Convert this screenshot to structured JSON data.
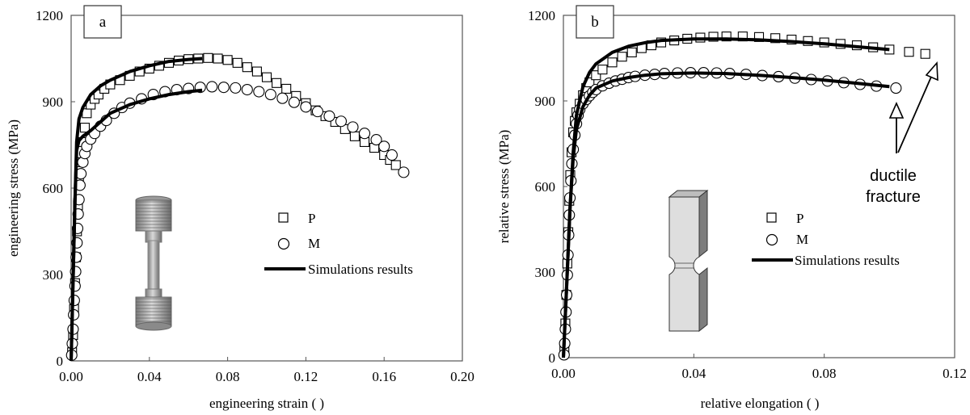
{
  "chart_data": [
    {
      "panel_label": "a",
      "type": "scatter",
      "xlabel": "engineering strain ( )",
      "ylabel": "engineering stress (MPa)",
      "xlim": [
        0,
        0.2
      ],
      "ylim": [
        0,
        1200
      ],
      "xticks": [
        "0.00",
        "0.04",
        "0.08",
        "0.12",
        "0.16",
        "0.20"
      ],
      "yticks": [
        "0",
        "300",
        "600",
        "900",
        "1200"
      ],
      "grid": false,
      "legend_position": "right",
      "legend": [
        {
          "label": "P",
          "marker": "square"
        },
        {
          "label": "M",
          "marker": "circle"
        },
        {
          "label": "Simulations results",
          "marker": "line"
        }
      ],
      "specimen_icon": "cylindrical-threaded-specimen",
      "series": [
        {
          "name": "P",
          "marker": "square",
          "points": [
            [
              0.0005,
              30
            ],
            [
              0.001,
              90
            ],
            [
              0.0015,
              180
            ],
            [
              0.002,
              270
            ],
            [
              0.0025,
              360
            ],
            [
              0.003,
              450
            ],
            [
              0.0035,
              540
            ],
            [
              0.004,
              620
            ],
            [
              0.005,
              690
            ],
            [
              0.006,
              760
            ],
            [
              0.007,
              810
            ],
            [
              0.008,
              860
            ],
            [
              0.01,
              890
            ],
            [
              0.012,
              910
            ],
            [
              0.014,
              925
            ],
            [
              0.017,
              945
            ],
            [
              0.02,
              960
            ],
            [
              0.025,
              975
            ],
            [
              0.03,
              990
            ],
            [
              0.035,
              1005
            ],
            [
              0.04,
              1015
            ],
            [
              0.045,
              1025
            ],
            [
              0.05,
              1035
            ],
            [
              0.055,
              1043
            ],
            [
              0.06,
              1048
            ],
            [
              0.065,
              1050
            ],
            [
              0.07,
              1052
            ],
            [
              0.075,
              1050
            ],
            [
              0.08,
              1045
            ],
            [
              0.085,
              1035
            ],
            [
              0.09,
              1020
            ],
            [
              0.095,
              1005
            ],
            [
              0.1,
              985
            ],
            [
              0.105,
              965
            ],
            [
              0.11,
              945
            ],
            [
              0.115,
              920
            ],
            [
              0.12,
              895
            ],
            [
              0.125,
              870
            ],
            [
              0.13,
              850
            ],
            [
              0.135,
              830
            ],
            [
              0.14,
              805
            ],
            [
              0.145,
              780
            ],
            [
              0.15,
              760
            ],
            [
              0.155,
              740
            ],
            [
              0.16,
              715
            ],
            [
              0.163,
              698
            ],
            [
              0.166,
              680
            ]
          ]
        },
        {
          "name": "M",
          "marker": "circle",
          "points": [
            [
              0.0003,
              20
            ],
            [
              0.0006,
              60
            ],
            [
              0.001,
              110
            ],
            [
              0.0013,
              160
            ],
            [
              0.0016,
              210
            ],
            [
              0.002,
              260
            ],
            [
              0.0023,
              310
            ],
            [
              0.0026,
              360
            ],
            [
              0.003,
              410
            ],
            [
              0.0033,
              460
            ],
            [
              0.0036,
              510
            ],
            [
              0.004,
              560
            ],
            [
              0.0045,
              610
            ],
            [
              0.005,
              650
            ],
            [
              0.006,
              690
            ],
            [
              0.007,
              720
            ],
            [
              0.008,
              745
            ],
            [
              0.01,
              770
            ],
            [
              0.012,
              790
            ],
            [
              0.015,
              815
            ],
            [
              0.018,
              835
            ],
            [
              0.022,
              860
            ],
            [
              0.026,
              880
            ],
            [
              0.03,
              895
            ],
            [
              0.036,
              910
            ],
            [
              0.042,
              925
            ],
            [
              0.048,
              935
            ],
            [
              0.054,
              942
            ],
            [
              0.06,
              946
            ],
            [
              0.066,
              950
            ],
            [
              0.072,
              952
            ],
            [
              0.078,
              950
            ],
            [
              0.084,
              948
            ],
            [
              0.09,
              942
            ],
            [
              0.096,
              935
            ],
            [
              0.102,
              925
            ],
            [
              0.108,
              912
            ],
            [
              0.114,
              898
            ],
            [
              0.12,
              882
            ],
            [
              0.126,
              866
            ],
            [
              0.132,
              850
            ],
            [
              0.138,
              832
            ],
            [
              0.144,
              812
            ],
            [
              0.15,
              790
            ],
            [
              0.156,
              768
            ],
            [
              0.16,
              745
            ],
            [
              0.164,
              715
            ],
            [
              0.17,
              655
            ]
          ]
        },
        {
          "name": "Simulations results",
          "marker": "line",
          "curves": [
            [
              [
                0,
                0
              ],
              [
                0.001,
                280
              ],
              [
                0.002,
                560
              ],
              [
                0.0028,
                760
              ],
              [
                0.004,
                840
              ],
              [
                0.006,
                880
              ],
              [
                0.01,
                925
              ],
              [
                0.015,
                955
              ],
              [
                0.02,
                975
              ],
              [
                0.03,
                1005
              ],
              [
                0.04,
                1025
              ],
              [
                0.05,
                1040
              ],
              [
                0.06,
                1047
              ],
              [
                0.067,
                1050
              ]
            ],
            [
              [
                0,
                0
              ],
              [
                0.001,
                280
              ],
              [
                0.002,
                560
              ],
              [
                0.0028,
                730
              ],
              [
                0.004,
                765
              ],
              [
                0.006,
                780
              ],
              [
                0.01,
                800
              ],
              [
                0.015,
                830
              ],
              [
                0.02,
                860
              ],
              [
                0.03,
                890
              ],
              [
                0.04,
                910
              ],
              [
                0.05,
                925
              ],
              [
                0.06,
                935
              ],
              [
                0.067,
                940
              ]
            ]
          ]
        }
      ]
    },
    {
      "panel_label": "b",
      "type": "scatter",
      "xlabel": "relative elongation ( )",
      "ylabel": "relative stress (MPa)",
      "xlim": [
        0,
        0.12
      ],
      "ylim": [
        0,
        1200
      ],
      "xticks": [
        "0.00",
        "0.04",
        "0.08",
        "0.12"
      ],
      "yticks": [
        "0",
        "300",
        "600",
        "900",
        "1200"
      ],
      "grid": false,
      "legend_position": "right",
      "legend": [
        {
          "label": "P",
          "marker": "square"
        },
        {
          "label": "M",
          "marker": "circle"
        },
        {
          "label": "Simulations results",
          "marker": "line"
        }
      ],
      "annotation": "ductile\nfracture",
      "specimen_icon": "flat-notched-specimen",
      "series": [
        {
          "name": "P",
          "marker": "square",
          "points": [
            [
              0.0003,
              30
            ],
            [
              0.0006,
              120
            ],
            [
              0.0009,
              220
            ],
            [
              0.0012,
              330
            ],
            [
              0.0015,
              440
            ],
            [
              0.0018,
              550
            ],
            [
              0.0021,
              640
            ],
            [
              0.0025,
              720
            ],
            [
              0.003,
              790
            ],
            [
              0.0035,
              830
            ],
            [
              0.004,
              860
            ],
            [
              0.005,
              890
            ],
            [
              0.006,
              920
            ],
            [
              0.007,
              945
            ],
            [
              0.008,
              965
            ],
            [
              0.01,
              990
            ],
            [
              0.012,
              1010
            ],
            [
              0.015,
              1035
            ],
            [
              0.018,
              1055
            ],
            [
              0.021,
              1070
            ],
            [
              0.024,
              1085
            ],
            [
              0.027,
              1095
            ],
            [
              0.03,
              1105
            ],
            [
              0.034,
              1112
            ],
            [
              0.038,
              1118
            ],
            [
              0.042,
              1122
            ],
            [
              0.046,
              1125
            ],
            [
              0.05,
              1126
            ],
            [
              0.055,
              1126
            ],
            [
              0.06,
              1124
            ],
            [
              0.065,
              1120
            ],
            [
              0.07,
              1115
            ],
            [
              0.075,
              1110
            ],
            [
              0.08,
              1105
            ],
            [
              0.085,
              1100
            ],
            [
              0.09,
              1095
            ],
            [
              0.095,
              1088
            ],
            [
              0.1,
              1080
            ],
            [
              0.106,
              1072
            ],
            [
              0.111,
              1065
            ]
          ]
        },
        {
          "name": "M",
          "marker": "circle",
          "points": [
            [
              0.0002,
              10
            ],
            [
              0.0004,
              50
            ],
            [
              0.0006,
              100
            ],
            [
              0.0008,
              160
            ],
            [
              0.001,
              220
            ],
            [
              0.0012,
              290
            ],
            [
              0.0014,
              360
            ],
            [
              0.0016,
              430
            ],
            [
              0.0018,
              500
            ],
            [
              0.002,
              560
            ],
            [
              0.0023,
              620
            ],
            [
              0.0026,
              680
            ],
            [
              0.003,
              730
            ],
            [
              0.0035,
              780
            ],
            [
              0.004,
              820
            ],
            [
              0.0045,
              850
            ],
            [
              0.005,
              870
            ],
            [
              0.006,
              890
            ],
            [
              0.007,
              905
            ],
            [
              0.008,
              918
            ],
            [
              0.009,
              930
            ],
            [
              0.01,
              940
            ],
            [
              0.012,
              953
            ],
            [
              0.014,
              962
            ],
            [
              0.016,
              970
            ],
            [
              0.018,
              976
            ],
            [
              0.02,
              982
            ],
            [
              0.022,
              986
            ],
            [
              0.025,
              990
            ],
            [
              0.028,
              993
            ],
            [
              0.031,
              996
            ],
            [
              0.035,
              998
            ],
            [
              0.039,
              999
            ],
            [
              0.043,
              999
            ],
            [
              0.047,
              998
            ],
            [
              0.051,
              996
            ],
            [
              0.056,
              993
            ],
            [
              0.061,
              989
            ],
            [
              0.066,
              985
            ],
            [
              0.071,
              980
            ],
            [
              0.076,
              975
            ],
            [
              0.081,
              970
            ],
            [
              0.086,
              964
            ],
            [
              0.091,
              958
            ],
            [
              0.096,
              952
            ],
            [
              0.102,
              945
            ]
          ]
        },
        {
          "name": "Simulations results",
          "marker": "line",
          "curves": [
            [
              [
                0,
                0
              ],
              [
                0.001,
                250
              ],
              [
                0.002,
                520
              ],
              [
                0.003,
                720
              ],
              [
                0.004,
                850
              ],
              [
                0.006,
                950
              ],
              [
                0.008,
                1000
              ],
              [
                0.01,
                1030
              ],
              [
                0.015,
                1070
              ],
              [
                0.02,
                1092
              ],
              [
                0.025,
                1104
              ],
              [
                0.03,
                1112
              ],
              [
                0.04,
                1117
              ],
              [
                0.05,
                1117
              ],
              [
                0.06,
                1114
              ],
              [
                0.07,
                1108
              ],
              [
                0.08,
                1100
              ],
              [
                0.09,
                1090
              ],
              [
                0.1,
                1080
              ]
            ],
            [
              [
                0,
                0
              ],
              [
                0.001,
                250
              ],
              [
                0.002,
                520
              ],
              [
                0.003,
                700
              ],
              [
                0.004,
                800
              ],
              [
                0.006,
                880
              ],
              [
                0.008,
                920
              ],
              [
                0.01,
                945
              ],
              [
                0.015,
                970
              ],
              [
                0.02,
                982
              ],
              [
                0.025,
                990
              ],
              [
                0.03,
                995
              ],
              [
                0.04,
                998
              ],
              [
                0.05,
                996
              ],
              [
                0.06,
                990
              ],
              [
                0.07,
                982
              ],
              [
                0.08,
                973
              ],
              [
                0.09,
                962
              ],
              [
                0.1,
                950
              ]
            ]
          ]
        }
      ]
    }
  ]
}
